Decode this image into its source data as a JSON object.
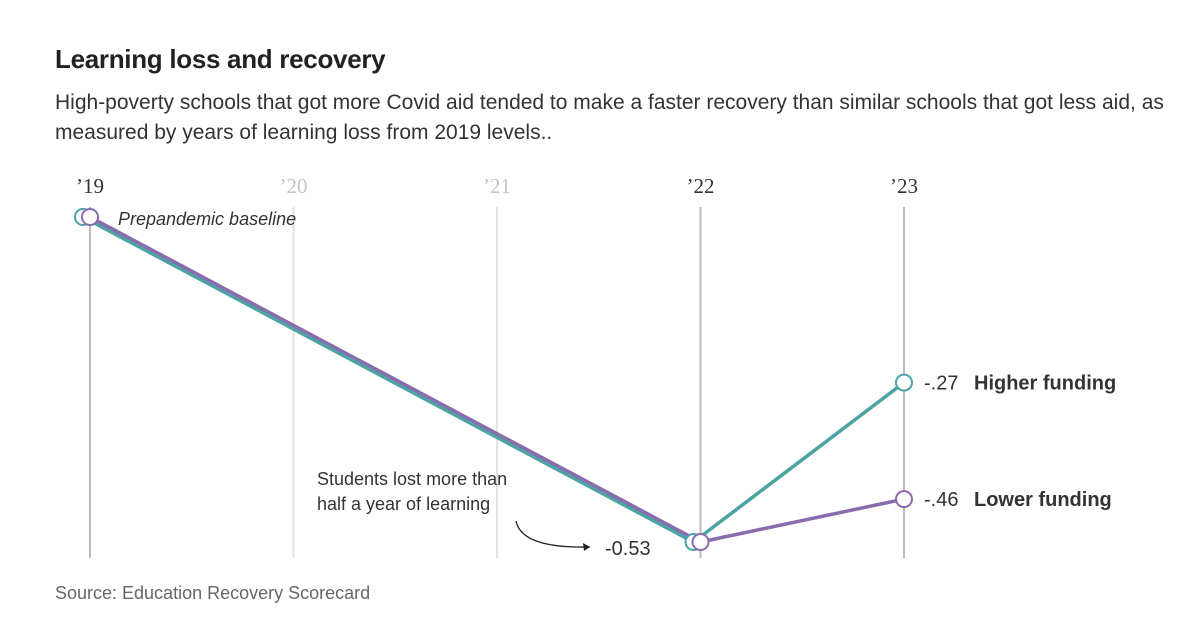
{
  "title": "Learning loss and recovery",
  "subtitle": "High-poverty schools that got more Covid aid tended to make a faster recovery than similar schools that got less aid, as measured by years of learning loss from 2019 levels..",
  "source": "Source: Education Recovery Scorecard",
  "chart_data": {
    "type": "line",
    "x_ticks": [
      {
        "label": "’19",
        "value": 2019,
        "data": true
      },
      {
        "label": "’20",
        "value": 2020,
        "data": false
      },
      {
        "label": "’21",
        "value": 2021,
        "data": false
      },
      {
        "label": "’22",
        "value": 2022,
        "data": true
      },
      {
        "label": "’23",
        "value": 2023,
        "data": true
      }
    ],
    "ylim": [
      -0.53,
      0
    ],
    "grid": true,
    "series": [
      {
        "name": "Higher funding",
        "color": "#4ba3a3",
        "x": [
          2019,
          2022,
          2023
        ],
        "y": [
          0,
          -0.53,
          -0.27
        ],
        "end_label": "-.27"
      },
      {
        "name": "Lower funding",
        "color": "#8a6cad",
        "x": [
          2019,
          2022,
          2023
        ],
        "y": [
          0,
          -0.53,
          -0.46
        ],
        "end_label": "-.46"
      }
    ],
    "annotations": {
      "baseline": "Prepandemic baseline",
      "low_line1": "Students lost more than",
      "low_line2": "half a year of learning",
      "low_value": "-0.53"
    }
  }
}
